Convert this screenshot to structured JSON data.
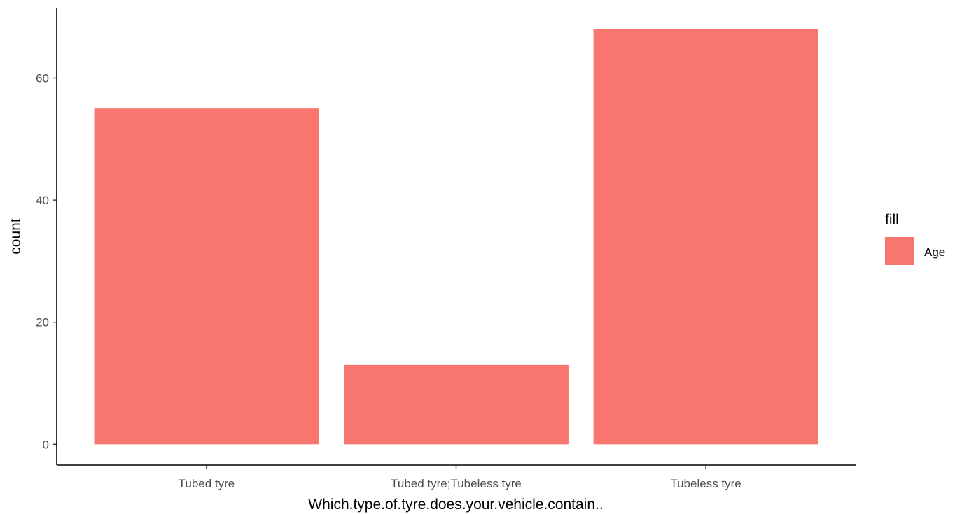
{
  "chart_data": {
    "type": "bar",
    "categories": [
      "Tubed tyre",
      "Tubed tyre;Tubeless tyre",
      "Tubeless tyre"
    ],
    "values": [
      55,
      13,
      68
    ],
    "xlabel": "Which.type.of.tyre.does.your.vehicle.contain..",
    "ylabel": "count",
    "ylim": [
      -3.4,
      71.4
    ],
    "yticks": [
      0,
      20,
      40,
      60
    ],
    "grid": false,
    "legend": {
      "title": "fill",
      "entries": [
        {
          "label": "Age",
          "color": "#F8766D"
        }
      ],
      "placement": "right"
    },
    "bar_color": "#F8766D"
  }
}
